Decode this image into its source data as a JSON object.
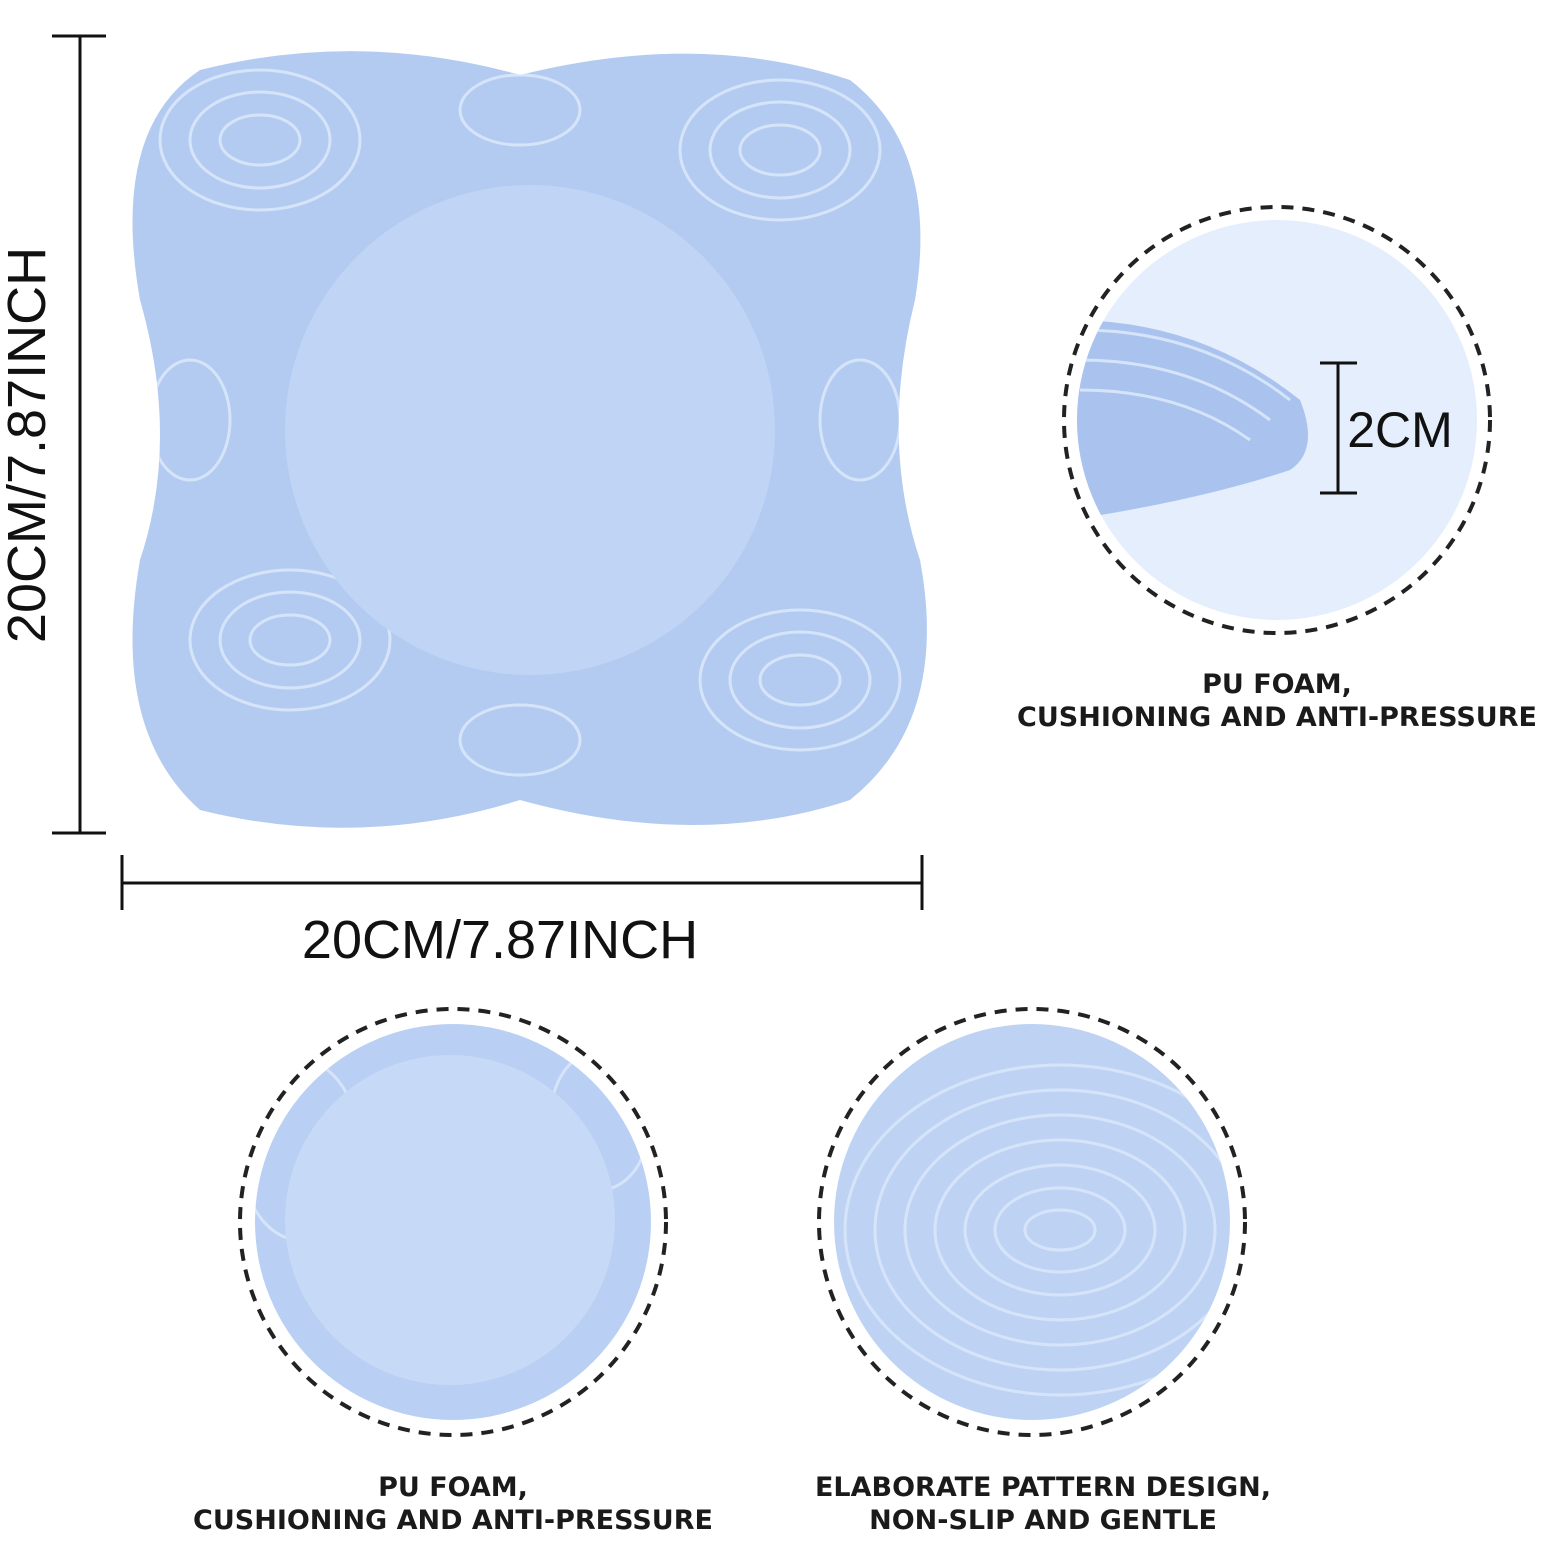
{
  "dimensions": {
    "height_label": "20CM/7.87INCH",
    "width_label": "20CM/7.87INCH"
  },
  "details": [
    {
      "measure": "2CM",
      "caption": [
        "PU FOAM,",
        "CUSHIONING AND ANTI-PRESSURE"
      ]
    },
    {
      "caption": [
        "PU FOAM,",
        "CUSHIONING AND ANTI-PRESSURE"
      ]
    },
    {
      "caption": [
        "ELABORATE PATTERN DESIGN,",
        "NON-SLIP AND GENTLE"
      ]
    }
  ]
}
